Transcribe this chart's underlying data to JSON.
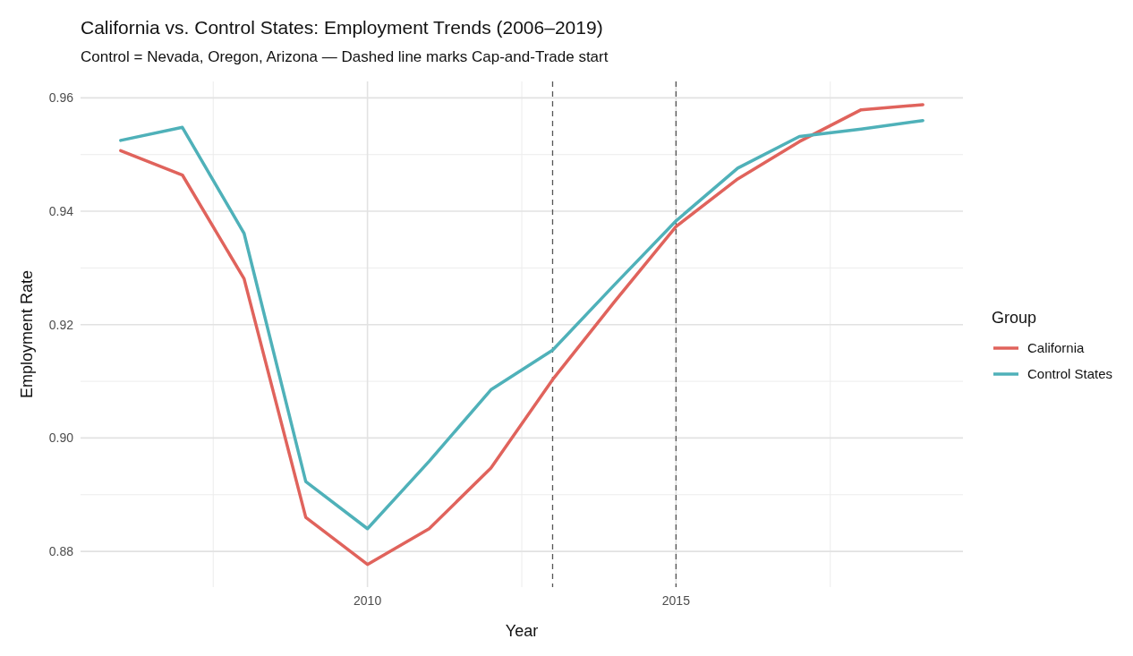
{
  "chart_data": {
    "type": "line",
    "title": "California vs. Control States: Employment Trends (2006–2019)",
    "subtitle": "Control = Nevada, Oregon, Arizona — Dashed line marks Cap-and-Trade start",
    "xlabel": "Year",
    "ylabel": "Employment Rate",
    "legend_title": "Group",
    "x": [
      2006,
      2007,
      2008,
      2009,
      2010,
      2011,
      2012,
      2013,
      2014,
      2015,
      2016,
      2017,
      2018,
      2019
    ],
    "series": [
      {
        "name": "California",
        "color": "#e0635c",
        "values": [
          0.9507,
          0.9464,
          0.9281,
          0.886,
          0.8777,
          0.884,
          0.8947,
          0.9103,
          0.924,
          0.9373,
          0.9457,
          0.9523,
          0.9579,
          0.9588
        ]
      },
      {
        "name": "Control States",
        "color": "#4fb1b9",
        "values": [
          0.9525,
          0.9548,
          0.9361,
          0.8923,
          0.884,
          0.8959,
          0.9085,
          0.9155,
          0.927,
          0.9383,
          0.9476,
          0.9532,
          0.9545,
          0.956
        ]
      }
    ],
    "xlim": [
      2005.35,
      2019.65
    ],
    "xticks": [
      2010,
      2015
    ],
    "ylim": [
      0.8737,
      0.9629
    ],
    "yticks": [
      {
        "value": 0.88,
        "label": "0.88"
      },
      {
        "value": 0.9,
        "label": "0.90"
      },
      {
        "value": 0.92,
        "label": "0.92"
      },
      {
        "value": 0.94,
        "label": "0.94"
      },
      {
        "value": 0.96,
        "label": "0.96"
      }
    ],
    "grid": true,
    "legend": "right",
    "line_style": "solid",
    "ref_lines": [
      {
        "axis": "x",
        "value": 2013,
        "color": "#555555",
        "line_style": "dashed"
      },
      {
        "axis": "x",
        "value": 2015,
        "color": "#555555",
        "line_style": "dashed"
      }
    ]
  }
}
